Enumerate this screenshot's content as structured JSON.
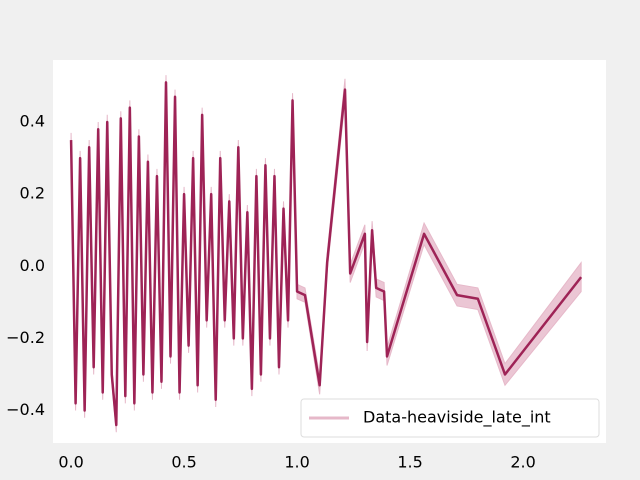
{
  "chart_data": {
    "type": "line",
    "x": [
      0.0,
      0.02,
      0.04,
      0.06,
      0.08,
      0.1,
      0.12,
      0.14,
      0.16,
      0.18,
      0.2,
      0.22,
      0.24,
      0.26,
      0.28,
      0.3,
      0.32,
      0.34,
      0.36,
      0.38,
      0.4,
      0.42,
      0.44,
      0.46,
      0.48,
      0.5,
      0.52,
      0.54,
      0.56,
      0.58,
      0.6,
      0.62,
      0.64,
      0.66,
      0.68,
      0.7,
      0.72,
      0.74,
      0.76,
      0.78,
      0.8,
      0.82,
      0.84,
      0.86,
      0.88,
      0.9,
      0.92,
      0.94,
      0.96,
      0.98,
      1.0,
      1.035,
      1.1,
      1.133,
      1.212,
      1.235,
      1.3,
      1.31,
      1.332,
      1.35,
      1.385,
      1.398,
      1.562,
      1.708,
      1.8,
      1.92,
      2.257
    ],
    "series": [
      {
        "name": "Data-heaviside_late_int",
        "color": "#9e2356",
        "band_color": "#e6b8c9",
        "values": [
          0.35,
          -0.38,
          0.3,
          -0.4,
          0.33,
          -0.28,
          0.38,
          -0.35,
          0.4,
          -0.3,
          -0.44,
          0.41,
          -0.36,
          0.44,
          -0.38,
          0.36,
          -0.3,
          0.29,
          -0.35,
          0.25,
          -0.32,
          0.51,
          -0.25,
          0.47,
          -0.35,
          0.2,
          -0.22,
          0.3,
          -0.33,
          0.42,
          -0.15,
          0.2,
          -0.37,
          0.3,
          -0.15,
          0.18,
          -0.2,
          0.33,
          -0.2,
          0.15,
          -0.34,
          0.25,
          -0.3,
          0.28,
          -0.2,
          0.25,
          -0.28,
          0.16,
          -0.15,
          0.46,
          -0.07,
          -0.08,
          -0.33,
          0.01,
          0.49,
          -0.02,
          0.09,
          -0.21,
          0.1,
          -0.06,
          -0.07,
          -0.25,
          0.09,
          -0.08,
          -0.09,
          -0.3,
          -0.03
        ],
        "errors": [
          0.02,
          0.02,
          0.02,
          0.02,
          0.02,
          0.02,
          0.02,
          0.02,
          0.02,
          0.02,
          0.02,
          0.02,
          0.02,
          0.02,
          0.02,
          0.02,
          0.02,
          0.02,
          0.02,
          0.02,
          0.02,
          0.02,
          0.02,
          0.02,
          0.02,
          0.02,
          0.02,
          0.02,
          0.02,
          0.02,
          0.02,
          0.02,
          0.02,
          0.02,
          0.02,
          0.02,
          0.02,
          0.02,
          0.02,
          0.02,
          0.02,
          0.02,
          0.02,
          0.02,
          0.02,
          0.02,
          0.02,
          0.02,
          0.02,
          0.02,
          0.02,
          0.02,
          0.025,
          0.025,
          0.03,
          0.025,
          0.025,
          0.025,
          0.025,
          0.025,
          0.025,
          0.025,
          0.03,
          0.03,
          0.03,
          0.03,
          0.04
        ]
      }
    ],
    "xlim": [
      -0.08,
      2.367
    ],
    "ylim": [
      -0.49,
      0.572
    ],
    "xticks": [
      {
        "value": 0.0,
        "label": "0.0"
      },
      0.5,
      {
        "value": 1.0,
        "label": "1.0"
      },
      1.5,
      {
        "value": 2.0,
        "label": "2.0"
      }
    ],
    "yticks": [
      {
        "value": -0.4,
        "label": "−0.4"
      },
      {
        "value": -0.2,
        "label": "−0.2"
      },
      {
        "value": 0.0,
        "label": "0.0"
      },
      0.2,
      0.4
    ],
    "grid": false,
    "legend": "lower right"
  }
}
